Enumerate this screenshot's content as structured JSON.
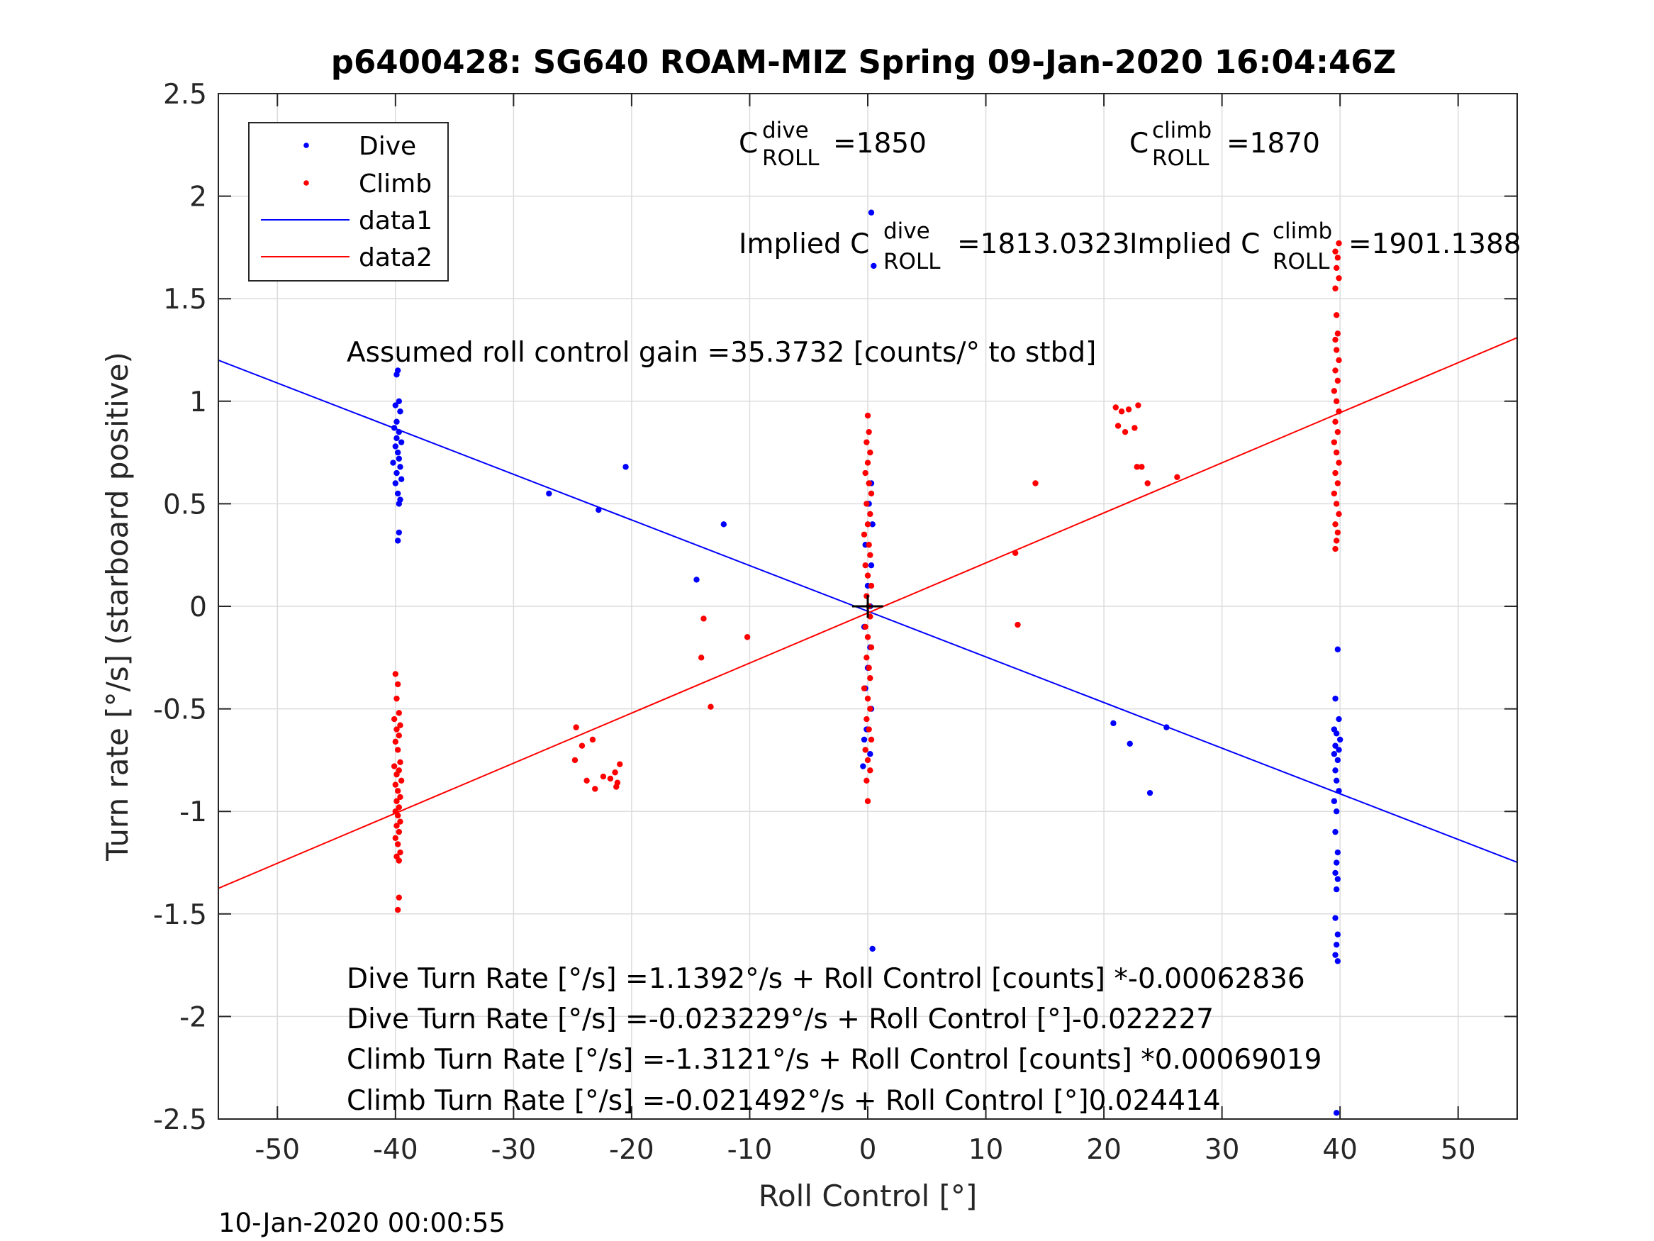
{
  "chart_data": {
    "type": "scatter",
    "title": "p6400428: SG640 ROAM-MIZ Spring 09-Jan-2020 16:04:46Z",
    "xlabel": "Roll Control [°]",
    "ylabel": "Turn rate [°/s] (starboard positive)",
    "xlim": [
      -55,
      55
    ],
    "ylim": [
      -2.5,
      2.5
    ],
    "xticks": [
      -50,
      -40,
      -30,
      -20,
      -10,
      0,
      10,
      20,
      30,
      40,
      50
    ],
    "xtick_labels": [
      "-50",
      "-40",
      "-30",
      "-20",
      "-10",
      "0",
      "10",
      "20",
      "30",
      "40",
      "50"
    ],
    "yticks": [
      -2.5,
      -2,
      -1.5,
      -1,
      -0.5,
      0,
      0.5,
      1,
      1.5,
      2,
      2.5
    ],
    "ytick_labels": [
      "-2.5",
      "-2",
      "-1.5",
      "-1",
      "-0.5",
      "0",
      "0.5",
      "1",
      "1.5",
      "2",
      "2.5"
    ],
    "grid": true,
    "legend_position": "top-left",
    "legend": [
      "Dive",
      "Climb",
      "data1",
      "data2"
    ],
    "colors": {
      "dive": "#0000ff",
      "climb": "#ff0000",
      "axes": "#262626",
      "grid": "#dcdcdc"
    },
    "series": [
      {
        "name": "Dive",
        "marker": "dot",
        "color": "#0000ff",
        "points": [
          [
            -39.8,
            1.15
          ],
          [
            -39.9,
            1.13
          ],
          [
            -39.7,
            1.0
          ],
          [
            -40.0,
            0.98
          ],
          [
            -39.6,
            0.95
          ],
          [
            -39.9,
            0.9
          ],
          [
            -40.1,
            0.87
          ],
          [
            -39.7,
            0.85
          ],
          [
            -39.9,
            0.82
          ],
          [
            -39.5,
            0.8
          ],
          [
            -40.0,
            0.78
          ],
          [
            -39.8,
            0.75
          ],
          [
            -39.7,
            0.72
          ],
          [
            -40.2,
            0.7
          ],
          [
            -39.6,
            0.68
          ],
          [
            -39.9,
            0.65
          ],
          [
            -39.5,
            0.62
          ],
          [
            -40.0,
            0.6
          ],
          [
            -39.8,
            0.55
          ],
          [
            -39.6,
            0.52
          ],
          [
            -39.7,
            0.5
          ],
          [
            -39.7,
            0.36
          ],
          [
            -39.8,
            0.32
          ],
          [
            -27.0,
            0.55
          ],
          [
            -22.8,
            0.47
          ],
          [
            -20.5,
            0.68
          ],
          [
            -12.2,
            0.4
          ],
          [
            -14.5,
            0.13
          ],
          [
            0.3,
            1.92
          ],
          [
            0.5,
            1.66
          ],
          [
            0.3,
            0.6
          ],
          [
            0.1,
            0.5
          ],
          [
            0.4,
            0.4
          ],
          [
            -0.2,
            0.3
          ],
          [
            0.3,
            0.2
          ],
          [
            0.0,
            0.1
          ],
          [
            0.2,
            0.0
          ],
          [
            -0.3,
            -0.1
          ],
          [
            0.2,
            -0.2
          ],
          [
            0.0,
            -0.3
          ],
          [
            -0.2,
            -0.4
          ],
          [
            0.3,
            -0.5
          ],
          [
            -0.1,
            -0.6
          ],
          [
            -0.3,
            -0.65
          ],
          [
            0.2,
            -0.72
          ],
          [
            -0.4,
            -0.78
          ],
          [
            0.4,
            -1.67
          ],
          [
            20.8,
            -0.57
          ],
          [
            22.2,
            -0.67
          ],
          [
            25.3,
            -0.59
          ],
          [
            23.9,
            -0.91
          ],
          [
            39.8,
            -0.21
          ],
          [
            39.6,
            -0.45
          ],
          [
            39.9,
            -0.55
          ],
          [
            39.5,
            -0.6
          ],
          [
            39.7,
            -0.62
          ],
          [
            40.0,
            -0.65
          ],
          [
            39.6,
            -0.68
          ],
          [
            39.9,
            -0.7
          ],
          [
            39.5,
            -0.72
          ],
          [
            39.8,
            -0.75
          ],
          [
            39.6,
            -0.8
          ],
          [
            39.7,
            -0.85
          ],
          [
            39.9,
            -0.9
          ],
          [
            39.5,
            -0.95
          ],
          [
            39.7,
            -1.0
          ],
          [
            39.6,
            -1.1
          ],
          [
            39.8,
            -1.2
          ],
          [
            39.7,
            -1.25
          ],
          [
            39.6,
            -1.3
          ],
          [
            39.8,
            -1.33
          ],
          [
            39.7,
            -1.38
          ],
          [
            39.6,
            -1.52
          ],
          [
            39.8,
            -1.6
          ],
          [
            39.7,
            -1.65
          ],
          [
            39.6,
            -1.7
          ],
          [
            39.8,
            -1.73
          ],
          [
            39.7,
            -2.47
          ]
        ]
      },
      {
        "name": "Climb",
        "marker": "dot",
        "color": "#ff0000",
        "points": [
          [
            -40.0,
            -0.33
          ],
          [
            -39.8,
            -0.38
          ],
          [
            -39.9,
            -0.45
          ],
          [
            -39.7,
            -0.52
          ],
          [
            -40.1,
            -0.55
          ],
          [
            -39.6,
            -0.58
          ],
          [
            -39.9,
            -0.6
          ],
          [
            -39.7,
            -0.63
          ],
          [
            -40.0,
            -0.66
          ],
          [
            -39.8,
            -0.7
          ],
          [
            -39.6,
            -0.76
          ],
          [
            -40.1,
            -0.78
          ],
          [
            -39.7,
            -0.8
          ],
          [
            -39.9,
            -0.82
          ],
          [
            -39.5,
            -0.85
          ],
          [
            -40.0,
            -0.87
          ],
          [
            -39.8,
            -0.9
          ],
          [
            -39.6,
            -0.93
          ],
          [
            -39.9,
            -0.95
          ],
          [
            -39.7,
            -0.98
          ],
          [
            -40.0,
            -1.0
          ],
          [
            -39.8,
            -1.02
          ],
          [
            -39.6,
            -1.05
          ],
          [
            -39.9,
            -1.07
          ],
          [
            -39.7,
            -1.1
          ],
          [
            -40.0,
            -1.13
          ],
          [
            -39.8,
            -1.16
          ],
          [
            -39.6,
            -1.2
          ],
          [
            -39.9,
            -1.22
          ],
          [
            -39.7,
            -1.24
          ],
          [
            -39.7,
            -1.42
          ],
          [
            -39.8,
            -1.48
          ],
          [
            -24.7,
            -0.59
          ],
          [
            -24.2,
            -0.68
          ],
          [
            -23.3,
            -0.65
          ],
          [
            -24.8,
            -0.75
          ],
          [
            -23.8,
            -0.85
          ],
          [
            -23.1,
            -0.89
          ],
          [
            -22.4,
            -0.83
          ],
          [
            -21.8,
            -0.84
          ],
          [
            -21.3,
            -0.88
          ],
          [
            -21.2,
            -0.86
          ],
          [
            -21.0,
            -0.77
          ],
          [
            -21.4,
            -0.81
          ],
          [
            -13.9,
            -0.06
          ],
          [
            -14.1,
            -0.25
          ],
          [
            -13.3,
            -0.49
          ],
          [
            -10.2,
            -0.15
          ],
          [
            0.0,
            0.93
          ],
          [
            0.1,
            0.85
          ],
          [
            -0.1,
            0.8
          ],
          [
            0.2,
            0.75
          ],
          [
            0.0,
            0.7
          ],
          [
            -0.2,
            0.65
          ],
          [
            0.1,
            0.6
          ],
          [
            0.3,
            0.55
          ],
          [
            -0.1,
            0.5
          ],
          [
            0.2,
            0.45
          ],
          [
            0.0,
            0.4
          ],
          [
            -0.3,
            0.35
          ],
          [
            0.1,
            0.3
          ],
          [
            0.2,
            0.25
          ],
          [
            -0.2,
            0.2
          ],
          [
            0.0,
            0.15
          ],
          [
            0.3,
            0.1
          ],
          [
            -0.1,
            0.05
          ],
          [
            0.1,
            0.0
          ],
          [
            0.2,
            -0.05
          ],
          [
            -0.2,
            -0.1
          ],
          [
            0.0,
            -0.15
          ],
          [
            0.3,
            -0.2
          ],
          [
            -0.1,
            -0.25
          ],
          [
            0.1,
            -0.3
          ],
          [
            0.2,
            -0.35
          ],
          [
            -0.3,
            -0.4
          ],
          [
            0.0,
            -0.45
          ],
          [
            0.2,
            -0.5
          ],
          [
            -0.1,
            -0.55
          ],
          [
            0.1,
            -0.6
          ],
          [
            0.3,
            -0.65
          ],
          [
            -0.2,
            -0.7
          ],
          [
            0.0,
            -0.75
          ],
          [
            0.2,
            -0.8
          ],
          [
            -0.1,
            -0.85
          ],
          [
            0.0,
            -0.95
          ],
          [
            12.5,
            0.26
          ],
          [
            12.7,
            -0.09
          ],
          [
            14.2,
            0.6
          ],
          [
            21.0,
            0.97
          ],
          [
            21.5,
            0.95
          ],
          [
            22.1,
            0.96
          ],
          [
            21.2,
            0.88
          ],
          [
            21.8,
            0.85
          ],
          [
            22.6,
            0.87
          ],
          [
            22.9,
            0.98
          ],
          [
            22.8,
            0.68
          ],
          [
            23.2,
            0.68
          ],
          [
            23.7,
            0.6
          ],
          [
            26.2,
            0.63
          ],
          [
            39.6,
            0.28
          ],
          [
            39.7,
            0.32
          ],
          [
            39.8,
            0.36
          ],
          [
            39.6,
            0.4
          ],
          [
            39.9,
            0.45
          ],
          [
            39.7,
            0.5
          ],
          [
            39.5,
            0.55
          ],
          [
            39.8,
            0.6
          ],
          [
            39.6,
            0.65
          ],
          [
            39.9,
            0.7
          ],
          [
            39.7,
            0.75
          ],
          [
            39.5,
            0.8
          ],
          [
            39.8,
            0.85
          ],
          [
            39.6,
            0.9
          ],
          [
            39.9,
            0.95
          ],
          [
            39.7,
            1.0
          ],
          [
            39.5,
            1.05
          ],
          [
            39.8,
            1.1
          ],
          [
            39.6,
            1.15
          ],
          [
            39.9,
            1.2
          ],
          [
            39.7,
            1.25
          ],
          [
            39.6,
            1.3
          ],
          [
            39.8,
            1.33
          ],
          [
            39.7,
            1.42
          ],
          [
            39.6,
            1.55
          ],
          [
            39.9,
            1.6
          ],
          [
            39.7,
            1.65
          ],
          [
            39.8,
            1.7
          ],
          [
            39.6,
            1.73
          ],
          [
            39.9,
            1.77
          ]
        ]
      },
      {
        "name": "data1",
        "type": "line",
        "color": "#0000ff",
        "x": [
          -55,
          55
        ],
        "y": [
          1.2,
          -1.248
        ]
      },
      {
        "name": "data2",
        "type": "line",
        "color": "#ff0000",
        "x": [
          -55,
          55
        ],
        "y": [
          -1.375,
          1.31
        ]
      }
    ],
    "center_marker": {
      "x": 0,
      "y": 0,
      "symbol": "+"
    },
    "annotations": {
      "c_dive": {
        "prefix": "C",
        "sup": "dive",
        "sub": "ROLL",
        "value": "=1850"
      },
      "c_climb": {
        "prefix": "C",
        "sup": "climb",
        "sub": "ROLL",
        "value": "=1870"
      },
      "implied_dive": {
        "prefix": "Implied C",
        "sup": "dive",
        "sub": "ROLL",
        "value": "=1813.0323"
      },
      "implied_climb": {
        "prefix": "Implied C",
        "sup": "climb",
        "sub": "ROLL",
        "value": "=1901.1388"
      },
      "gain": "Assumed roll control gain =35.3732 [counts/° to stbd]",
      "eq1": "Dive Turn Rate [°/s] =1.1392°/s + Roll Control [counts] *-0.00062836",
      "eq2": "Dive Turn Rate [°/s] =-0.023229°/s + Roll Control [°]-0.022227",
      "eq3": "Climb Turn Rate [°/s] =-1.3121°/s + Roll Control [counts] *0.00069019",
      "eq4": "Climb Turn Rate [°/s] =-0.021492°/s + Roll Control [°]0.024414"
    }
  },
  "footer": {
    "timestamp": "10-Jan-2020 00:00:55"
  }
}
